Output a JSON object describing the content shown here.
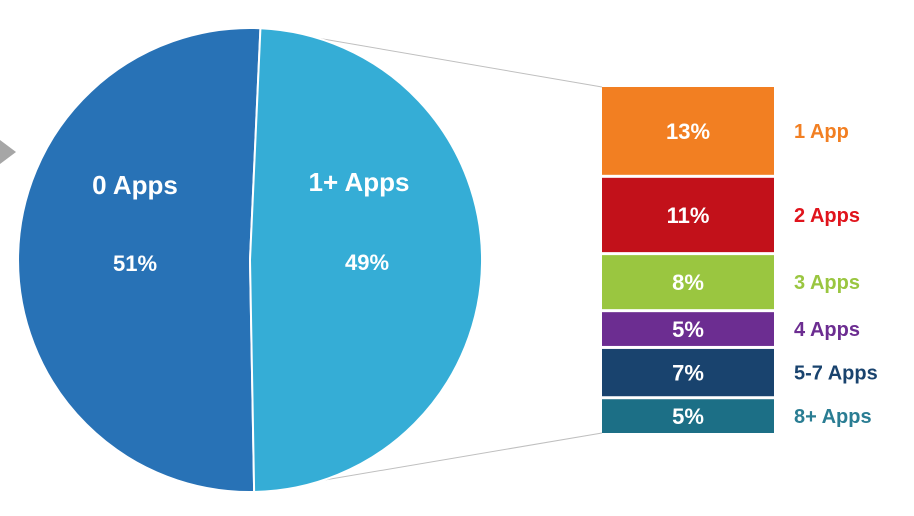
{
  "chart_data": {
    "type": "pie",
    "pie": {
      "slices": [
        {
          "label": "0 Apps",
          "value": 51,
          "value_label": "51%",
          "color": "#2872B6"
        },
        {
          "label": "1+ Apps",
          "value": 49,
          "value_label": "49%",
          "color": "#35ADD6"
        }
      ]
    },
    "breakdown": {
      "type": "stacked-bar",
      "of": "1+ Apps",
      "segments": [
        {
          "label": "1 App",
          "value": 13,
          "value_label": "13%",
          "color": "#F27F22",
          "label_color": "#F27F22"
        },
        {
          "label": "2 Apps",
          "value": 11,
          "value_label": "11%",
          "color": "#C2111A",
          "label_color": "#E0141C"
        },
        {
          "label": "3 Apps",
          "value": 8,
          "value_label": "8%",
          "color": "#9AC640",
          "label_color": "#9AC640"
        },
        {
          "label": "4 Apps",
          "value": 5,
          "value_label": "5%",
          "color": "#6C2D91",
          "label_color": "#6C2D91"
        },
        {
          "label": "5-7 Apps",
          "value": 7,
          "value_label": "7%",
          "color": "#19436E",
          "label_color": "#19436E"
        },
        {
          "label": "8+ Apps",
          "value": 5,
          "value_label": "5%",
          "color": "#1C6F86",
          "label_color": "#2A7D93"
        }
      ]
    }
  },
  "colors": {
    "connector": "#BFBFBF",
    "arrow": "#A6A6A6",
    "background": "#FFFFFF"
  }
}
